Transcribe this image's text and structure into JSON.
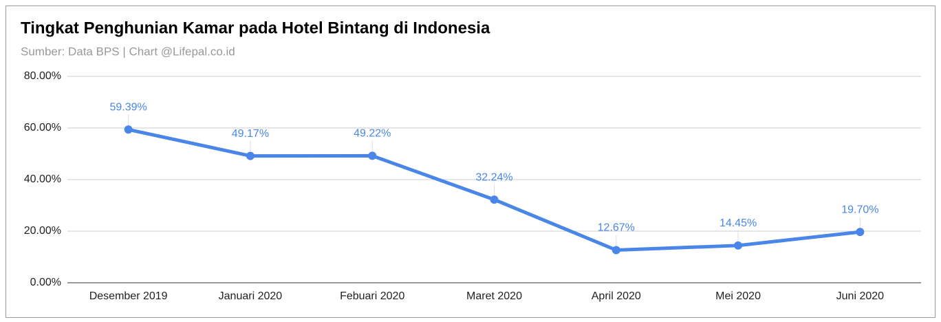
{
  "chart_data": {
    "type": "line",
    "title": "Tingkat Penghunian Kamar pada Hotel Bintang di Indonesia",
    "subtitle": "Sumber: Data BPS | Chart  @Lifepal.co.id",
    "categories": [
      "Desember 2019",
      "Januari 2020",
      "Febuari 2020",
      "Maret 2020",
      "April 2020",
      "Mei 2020",
      "Juni 2020"
    ],
    "values": [
      59.39,
      49.17,
      49.22,
      32.24,
      12.67,
      14.45,
      19.7
    ],
    "value_labels": [
      "59.39%",
      "49.17%",
      "49.22%",
      "32.24%",
      "12.67%",
      "14.45%",
      "19.70%"
    ],
    "color": "#4a86e8",
    "ylim": [
      0,
      80
    ],
    "yticks": [
      {
        "value": 0,
        "label": "0.00%"
      },
      {
        "value": 20,
        "label": "20.00%"
      },
      {
        "value": 40,
        "label": "40.00%"
      },
      {
        "value": 60,
        "label": "60.00%"
      },
      {
        "value": 80,
        "label": "80.00%"
      }
    ],
    "grid": true
  }
}
